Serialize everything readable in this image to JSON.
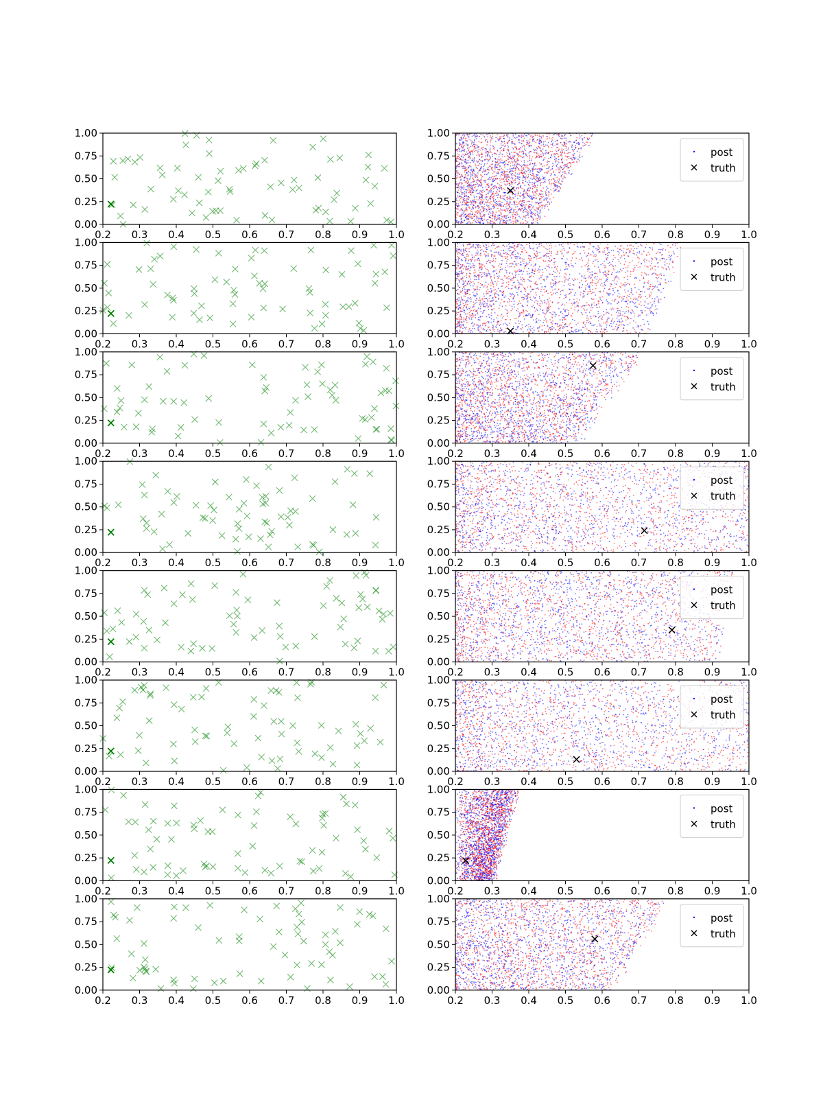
{
  "figure": {
    "rows": 8,
    "cols": 2
  },
  "colors": {
    "samples": "#008000",
    "post_a": "#0000ff",
    "post_b": "#ff0000",
    "truth": "#000000",
    "axis": "#000000"
  },
  "axis_common": {
    "xlim": [
      0.2,
      1.0
    ],
    "ylim": [
      0.0,
      1.0
    ],
    "xticks": [
      "0.2",
      "0.3",
      "0.4",
      "0.5",
      "0.6",
      "0.7",
      "0.8",
      "0.9",
      "1.0"
    ],
    "yticks": [
      "0.00",
      "0.25",
      "0.50",
      "0.75",
      "1.00"
    ]
  },
  "legend": {
    "post_label": "post",
    "truth_label": "truth",
    "placement": "upper right"
  },
  "chart_data": [
    {
      "type": "scatter",
      "panel": "left",
      "row": 0,
      "marker": "x",
      "seed": 11,
      "count": 70,
      "highlight": [
        0.222,
        0.222
      ],
      "xlim": [
        0.2,
        1.0
      ],
      "ylim": [
        0.0,
        1.0
      ]
    },
    {
      "type": "scatter",
      "panel": "right",
      "row": 0,
      "marker": "dot",
      "seed": 21,
      "series": [
        {
          "name": "post"
        },
        {
          "name": "truth",
          "x": 0.35,
          "y": 0.37
        }
      ],
      "xlim": [
        0.2,
        1.0
      ],
      "ylim": [
        0.0,
        1.0
      ]
    },
    {
      "type": "scatter",
      "panel": "left",
      "row": 1,
      "marker": "x",
      "seed": 12,
      "count": 70,
      "highlight": [
        0.222,
        0.222
      ],
      "xlim": [
        0.2,
        1.0
      ],
      "ylim": [
        0.0,
        1.0
      ]
    },
    {
      "type": "scatter",
      "panel": "right",
      "row": 1,
      "marker": "dot",
      "seed": 22,
      "series": [
        {
          "name": "post"
        },
        {
          "name": "truth",
          "x": 0.35,
          "y": 0.03
        }
      ],
      "xlim": [
        0.2,
        1.0
      ],
      "ylim": [
        0.0,
        1.0
      ]
    },
    {
      "type": "scatter",
      "panel": "left",
      "row": 2,
      "marker": "x",
      "seed": 13,
      "count": 70,
      "highlight": [
        0.222,
        0.222
      ],
      "xlim": [
        0.2,
        1.0
      ],
      "ylim": [
        0.0,
        1.0
      ]
    },
    {
      "type": "scatter",
      "panel": "right",
      "row": 2,
      "marker": "dot",
      "seed": 23,
      "series": [
        {
          "name": "post"
        },
        {
          "name": "truth",
          "x": 0.575,
          "y": 0.85
        }
      ],
      "xlim": [
        0.2,
        1.0
      ],
      "ylim": [
        0.0,
        1.0
      ]
    },
    {
      "type": "scatter",
      "panel": "left",
      "row": 3,
      "marker": "x",
      "seed": 14,
      "count": 70,
      "highlight": [
        0.222,
        0.222
      ],
      "xlim": [
        0.2,
        1.0
      ],
      "ylim": [
        0.0,
        1.0
      ]
    },
    {
      "type": "scatter",
      "panel": "right",
      "row": 3,
      "marker": "dot",
      "seed": 24,
      "series": [
        {
          "name": "post"
        },
        {
          "name": "truth",
          "x": 0.715,
          "y": 0.24
        }
      ],
      "xlim": [
        0.2,
        1.0
      ],
      "ylim": [
        0.0,
        1.0
      ]
    },
    {
      "type": "scatter",
      "panel": "left",
      "row": 4,
      "marker": "x",
      "seed": 15,
      "count": 70,
      "highlight": [
        0.222,
        0.222
      ],
      "xlim": [
        0.2,
        1.0
      ],
      "ylim": [
        0.0,
        1.0
      ]
    },
    {
      "type": "scatter",
      "panel": "right",
      "row": 4,
      "marker": "dot",
      "seed": 25,
      "series": [
        {
          "name": "post"
        },
        {
          "name": "truth",
          "x": 0.79,
          "y": 0.35
        }
      ],
      "xlim": [
        0.2,
        1.0
      ],
      "ylim": [
        0.0,
        1.0
      ]
    },
    {
      "type": "scatter",
      "panel": "left",
      "row": 5,
      "marker": "x",
      "seed": 16,
      "count": 70,
      "highlight": [
        0.222,
        0.222
      ],
      "xlim": [
        0.2,
        1.0
      ],
      "ylim": [
        0.0,
        1.0
      ]
    },
    {
      "type": "scatter",
      "panel": "right",
      "row": 5,
      "marker": "dot",
      "seed": 26,
      "series": [
        {
          "name": "post"
        },
        {
          "name": "truth",
          "x": 0.53,
          "y": 0.13
        }
      ],
      "xlim": [
        0.2,
        1.0
      ],
      "ylim": [
        0.0,
        1.0
      ]
    },
    {
      "type": "scatter",
      "panel": "left",
      "row": 6,
      "marker": "x",
      "seed": 17,
      "count": 70,
      "highlight": [
        0.222,
        0.222
      ],
      "xlim": [
        0.2,
        1.0
      ],
      "ylim": [
        0.0,
        1.0
      ]
    },
    {
      "type": "scatter",
      "panel": "right",
      "row": 6,
      "marker": "dot",
      "seed": 27,
      "series": [
        {
          "name": "post"
        },
        {
          "name": "truth",
          "x": 0.228,
          "y": 0.22
        }
      ],
      "xlim": [
        0.2,
        1.0
      ],
      "ylim": [
        0.0,
        1.0
      ]
    },
    {
      "type": "scatter",
      "panel": "left",
      "row": 7,
      "marker": "x",
      "seed": 18,
      "count": 70,
      "highlight": [
        0.222,
        0.222
      ],
      "xlim": [
        0.2,
        1.0
      ],
      "ylim": [
        0.0,
        1.0
      ]
    },
    {
      "type": "scatter",
      "panel": "right",
      "row": 7,
      "marker": "dot",
      "seed": 28,
      "series": [
        {
          "name": "post"
        },
        {
          "name": "truth",
          "x": 0.58,
          "y": 0.56
        }
      ],
      "xlim": [
        0.2,
        1.0
      ],
      "ylim": [
        0.0,
        1.0
      ]
    }
  ]
}
